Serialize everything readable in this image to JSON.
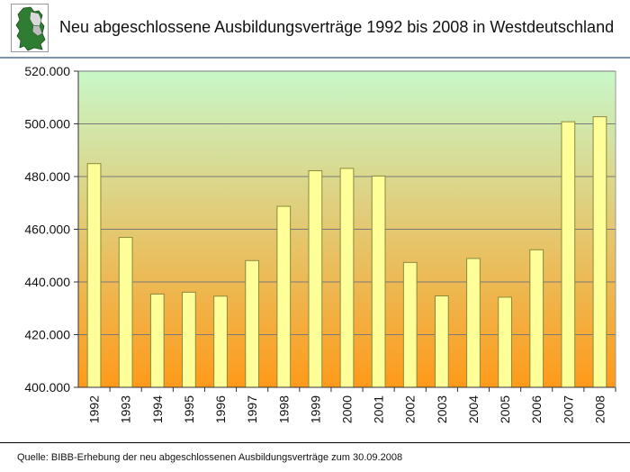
{
  "header": {
    "title": "Neu abgeschlossene Ausbildungsverträge 1992 bis 2008 in Westdeutschland",
    "logo_icon": "germany-map-icon"
  },
  "footer": {
    "source": "Quelle: BIBB-Erhebung der neu abgeschlossenen Ausbildungsverträge zum 30.09.2008"
  },
  "colors": {
    "bar_fill": "#ffff99",
    "bar_stroke": "#8a8a3c",
    "gradient_top": "#c8f7c8",
    "gradient_bottom": "#ff9a1a",
    "grid": "#7a7a7a"
  },
  "chart_data": {
    "type": "bar",
    "title": "Neu abgeschlossene Ausbildungsverträge 1992 bis 2008 in Westdeutschland",
    "xlabel": "",
    "ylabel": "",
    "categories": [
      "1992",
      "1993",
      "1994",
      "1995",
      "1996",
      "1997",
      "1998",
      "1999",
      "2000",
      "2001",
      "2002",
      "2003",
      "2004",
      "2005",
      "2006",
      "2007",
      "2008"
    ],
    "values": [
      484900,
      456900,
      435400,
      436100,
      434600,
      448100,
      468700,
      482200,
      483100,
      480200,
      447400,
      434700,
      448900,
      434200,
      452200,
      500800,
      502700
    ],
    "ylim": [
      400000,
      520000
    ],
    "yticks": [
      400000,
      420000,
      440000,
      460000,
      480000,
      500000,
      520000
    ],
    "ytick_labels": [
      "400.000",
      "420.000",
      "440.000",
      "460.000",
      "480.000",
      "500.000",
      "520.000"
    ],
    "grid": true,
    "legend": "none"
  }
}
